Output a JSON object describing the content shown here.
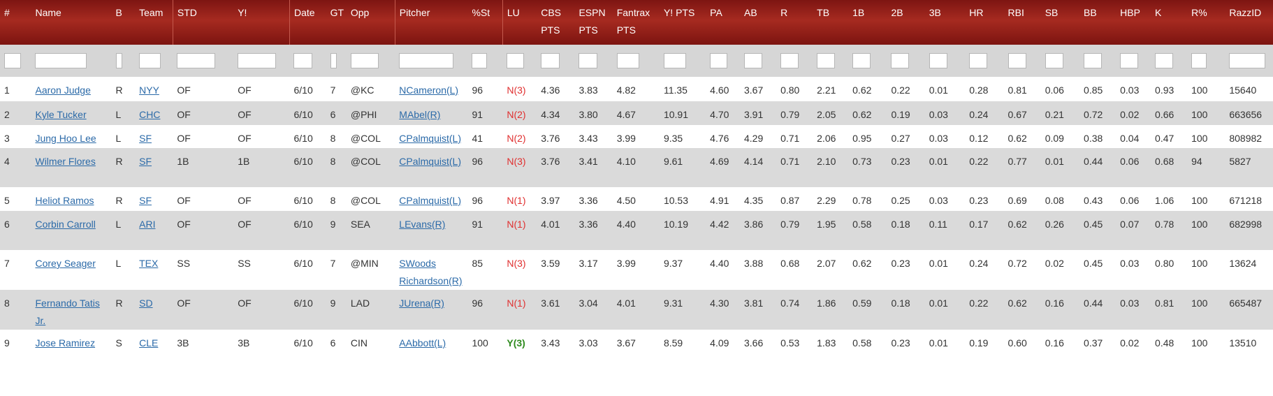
{
  "columns": [
    "#",
    "Name",
    "B",
    "Team",
    "STD",
    "Y!",
    "Date",
    "GT",
    "Opp",
    "Pitcher",
    "%St",
    "LU",
    "CBS PTS",
    "ESPN PTS",
    "Fantrax PTS",
    "Y! PTS",
    "PA",
    "AB",
    "R",
    "TB",
    "1B",
    "2B",
    "3B",
    "HR",
    "RBI",
    "SB",
    "BB",
    "HBP",
    "K",
    "R%",
    "RazzID"
  ],
  "rows": [
    {
      "num": "1",
      "name": "Aaron Judge",
      "b": "R",
      "team": "NYY",
      "std": "OF",
      "yahoo": "OF",
      "date": "6/10",
      "gt": "7",
      "opp": "@KC",
      "pitcher": "NCameron(L)",
      "st": "96",
      "lu": "N(3)",
      "cbs": "4.36",
      "espn": "3.83",
      "fantrax": "4.82",
      "ypts": "11.35",
      "pa": "4.60",
      "ab": "3.67",
      "r": "0.80",
      "tb": "2.21",
      "b1": "0.62",
      "b2": "0.22",
      "b3": "0.01",
      "hr": "0.28",
      "rbi": "0.81",
      "sb": "0.06",
      "bb": "0.85",
      "hbp": "0.03",
      "k": "0.93",
      "rpct": "100",
      "razzid": "15640"
    },
    {
      "num": "2",
      "name": "Kyle Tucker",
      "b": "L",
      "team": "CHC",
      "std": "OF",
      "yahoo": "OF",
      "date": "6/10",
      "gt": "6",
      "opp": "@PHI",
      "pitcher": "MAbel(R)",
      "st": "91",
      "lu": "N(2)",
      "cbs": "4.34",
      "espn": "3.80",
      "fantrax": "4.67",
      "ypts": "10.91",
      "pa": "4.70",
      "ab": "3.91",
      "r": "0.79",
      "tb": "2.05",
      "b1": "0.62",
      "b2": "0.19",
      "b3": "0.03",
      "hr": "0.24",
      "rbi": "0.67",
      "sb": "0.21",
      "bb": "0.72",
      "hbp": "0.02",
      "k": "0.66",
      "rpct": "100",
      "razzid": "663656"
    },
    {
      "num": "3",
      "name": "Jung Hoo Lee",
      "b": "L",
      "team": "SF",
      "std": "OF",
      "yahoo": "OF",
      "date": "6/10",
      "gt": "8",
      "opp": "@COL",
      "pitcher": "CPalmquist(L)",
      "st": "41",
      "lu": "N(2)",
      "cbs": "3.76",
      "espn": "3.43",
      "fantrax": "3.99",
      "ypts": "9.35",
      "pa": "4.76",
      "ab": "4.29",
      "r": "0.71",
      "tb": "2.06",
      "b1": "0.95",
      "b2": "0.27",
      "b3": "0.03",
      "hr": "0.12",
      "rbi": "0.62",
      "sb": "0.09",
      "bb": "0.38",
      "hbp": "0.04",
      "k": "0.47",
      "rpct": "100",
      "razzid": "808982"
    },
    {
      "num": "4",
      "name": "Wilmer Flores",
      "b": "R",
      "team": "SF",
      "std": "1B",
      "yahoo": "1B",
      "date": "6/10",
      "gt": "8",
      "opp": "@COL",
      "pitcher": "CPalmquist(L)",
      "st": "96",
      "lu": "N(3)",
      "cbs": "3.76",
      "espn": "3.41",
      "fantrax": "4.10",
      "ypts": "9.61",
      "pa": "4.69",
      "ab": "4.14",
      "r": "0.71",
      "tb": "2.10",
      "b1": "0.73",
      "b2": "0.23",
      "b3": "0.01",
      "hr": "0.22",
      "rbi": "0.77",
      "sb": "0.01",
      "bb": "0.44",
      "hbp": "0.06",
      "k": "0.68",
      "rpct": "94",
      "razzid": "5827"
    },
    {
      "num": "5",
      "name": "Heliot Ramos",
      "b": "R",
      "team": "SF",
      "std": "OF",
      "yahoo": "OF",
      "date": "6/10",
      "gt": "8",
      "opp": "@COL",
      "pitcher": "CPalmquist(L)",
      "st": "96",
      "lu": "N(1)",
      "cbs": "3.97",
      "espn": "3.36",
      "fantrax": "4.50",
      "ypts": "10.53",
      "pa": "4.91",
      "ab": "4.35",
      "r": "0.87",
      "tb": "2.29",
      "b1": "0.78",
      "b2": "0.25",
      "b3": "0.03",
      "hr": "0.23",
      "rbi": "0.69",
      "sb": "0.08",
      "bb": "0.43",
      "hbp": "0.06",
      "k": "1.06",
      "rpct": "100",
      "razzid": "671218"
    },
    {
      "num": "6",
      "name": "Corbin Carroll",
      "b": "L",
      "team": "ARI",
      "std": "OF",
      "yahoo": "OF",
      "date": "6/10",
      "gt": "9",
      "opp": "SEA",
      "pitcher": "LEvans(R)",
      "st": "91",
      "lu": "N(1)",
      "cbs": "4.01",
      "espn": "3.36",
      "fantrax": "4.40",
      "ypts": "10.19",
      "pa": "4.42",
      "ab": "3.86",
      "r": "0.79",
      "tb": "1.95",
      "b1": "0.58",
      "b2": "0.18",
      "b3": "0.11",
      "hr": "0.17",
      "rbi": "0.62",
      "sb": "0.26",
      "bb": "0.45",
      "hbp": "0.07",
      "k": "0.78",
      "rpct": "100",
      "razzid": "682998"
    },
    {
      "num": "7",
      "name": "Corey Seager",
      "b": "L",
      "team": "TEX",
      "std": "SS",
      "yahoo": "SS",
      "date": "6/10",
      "gt": "7",
      "opp": "@MIN",
      "pitcher": "SWoods Richardson(R)",
      "st": "85",
      "lu": "N(3)",
      "cbs": "3.59",
      "espn": "3.17",
      "fantrax": "3.99",
      "ypts": "9.37",
      "pa": "4.40",
      "ab": "3.88",
      "r": "0.68",
      "tb": "2.07",
      "b1": "0.62",
      "b2": "0.23",
      "b3": "0.01",
      "hr": "0.24",
      "rbi": "0.72",
      "sb": "0.02",
      "bb": "0.45",
      "hbp": "0.03",
      "k": "0.80",
      "rpct": "100",
      "razzid": "13624"
    },
    {
      "num": "8",
      "name": "Fernando Tatis Jr.",
      "b": "R",
      "team": "SD",
      "std": "OF",
      "yahoo": "OF",
      "date": "6/10",
      "gt": "9",
      "opp": "LAD",
      "pitcher": "JUrena(R)",
      "st": "96",
      "lu": "N(1)",
      "cbs": "3.61",
      "espn": "3.04",
      "fantrax": "4.01",
      "ypts": "9.31",
      "pa": "4.30",
      "ab": "3.81",
      "r": "0.74",
      "tb": "1.86",
      "b1": "0.59",
      "b2": "0.18",
      "b3": "0.01",
      "hr": "0.22",
      "rbi": "0.62",
      "sb": "0.16",
      "bb": "0.44",
      "hbp": "0.03",
      "k": "0.81",
      "rpct": "100",
      "razzid": "665487"
    },
    {
      "num": "9",
      "name": "Jose Ramirez",
      "b": "S",
      "team": "CLE",
      "std": "3B",
      "yahoo": "3B",
      "date": "6/10",
      "gt": "6",
      "opp": "CIN",
      "pitcher": "AAbbott(L)",
      "st": "100",
      "lu": "Y(3)",
      "cbs": "3.43",
      "espn": "3.03",
      "fantrax": "3.67",
      "ypts": "8.59",
      "pa": "4.09",
      "ab": "3.66",
      "r": "0.53",
      "tb": "1.83",
      "b1": "0.58",
      "b2": "0.23",
      "b3": "0.01",
      "hr": "0.19",
      "rbi": "0.60",
      "sb": "0.16",
      "bb": "0.37",
      "hbp": "0.02",
      "k": "0.48",
      "rpct": "100",
      "razzid": "13510"
    }
  ]
}
